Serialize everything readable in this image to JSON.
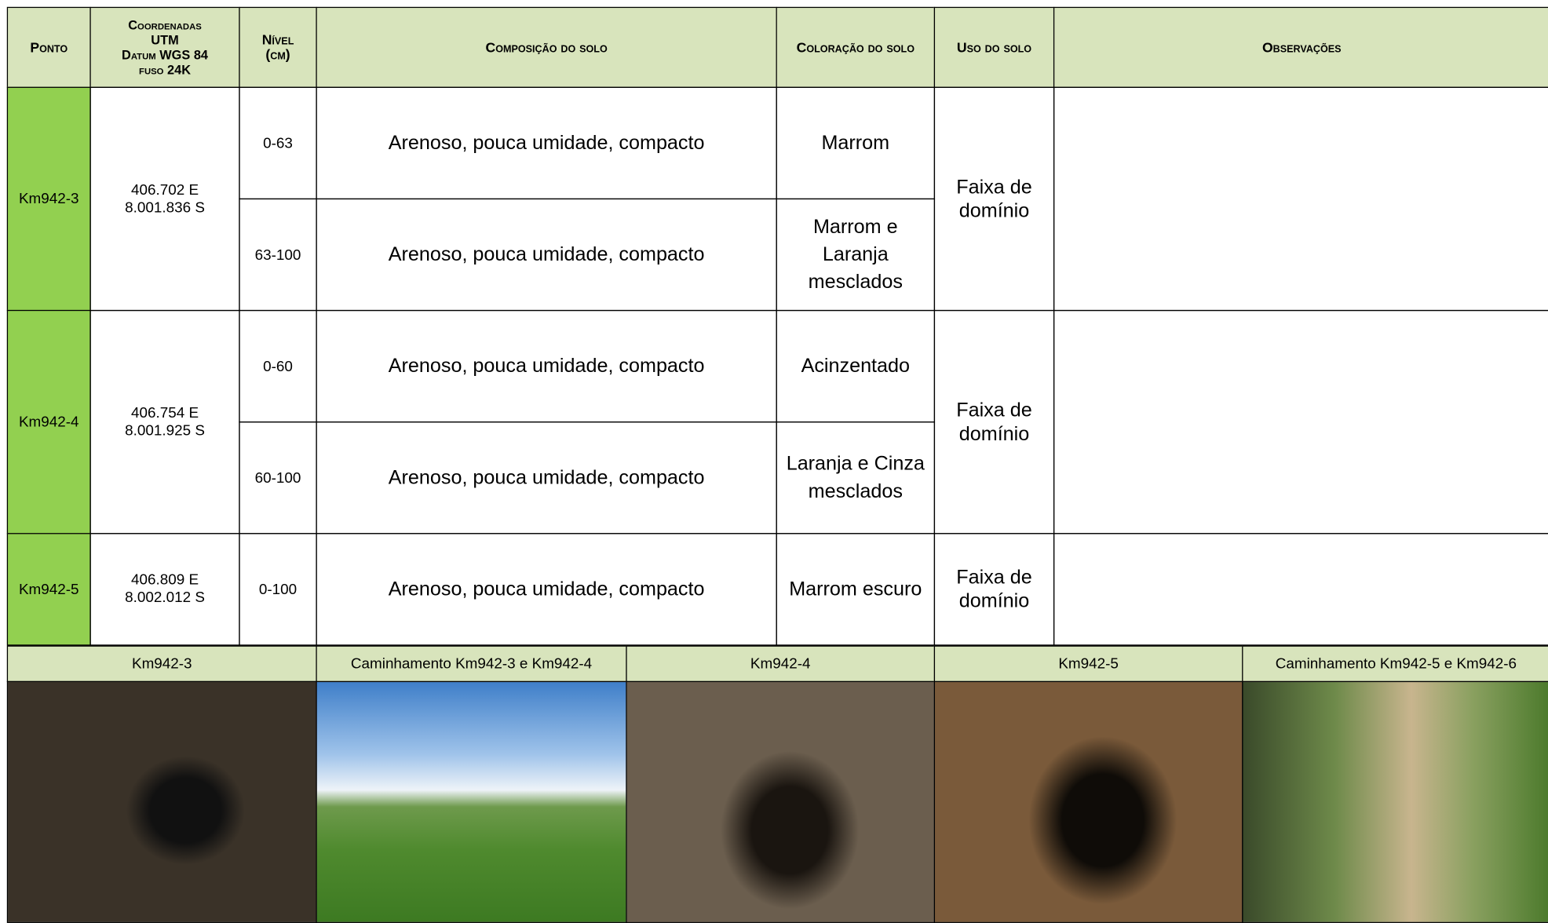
{
  "table": {
    "header": [
      "Ponto",
      [
        "Coordenadas",
        "UTM",
        "Datum WGS 84",
        "fuso 24K"
      ],
      [
        "Nível",
        "(cm)"
      ],
      "Composição do solo",
      "Coloração do solo",
      "Uso do solo",
      "Observações"
    ],
    "points": [
      {
        "ponto": "Km942-3",
        "coords": [
          "406.702 E",
          "8.001.836 S"
        ],
        "layers": [
          {
            "nivel": "0-63",
            "composicao": "Arenoso, pouca umidade, compacto",
            "coloracao": "Marrom"
          },
          {
            "nivel": "63-100",
            "composicao": "Arenoso, pouca umidade, compacto",
            "coloracao": "Marrom e Laranja mesclados"
          }
        ],
        "uso": "Faixa de domínio"
      },
      {
        "ponto": "Km942-4",
        "coords": [
          "406.754 E",
          "8.001.925 S"
        ],
        "layers": [
          {
            "nivel": "0-60",
            "composicao": "Arenoso, pouca umidade, compacto",
            "coloracao": "Acinzentado"
          },
          {
            "nivel": "60-100",
            "composicao": "Arenoso, pouca umidade, compacto",
            "coloracao": "Laranja e Cinza mesclados"
          }
        ],
        "uso": "Faixa de domínio"
      },
      {
        "ponto": "Km942-5",
        "coords": [
          "406.809 E",
          "8.002.012 S"
        ],
        "layers": [
          {
            "nivel": "0-100",
            "composicao": "Arenoso, pouca umidade, compacto",
            "coloracao": "Marrom escuro"
          }
        ],
        "uso": "Faixa de domínio"
      }
    ]
  },
  "photos": [
    "Km942-3",
    "Caminhamento Km942-3 e Km942-4",
    "Km942-4",
    "Km942-5",
    "Caminhamento Km942-5 e Km942-6"
  ]
}
